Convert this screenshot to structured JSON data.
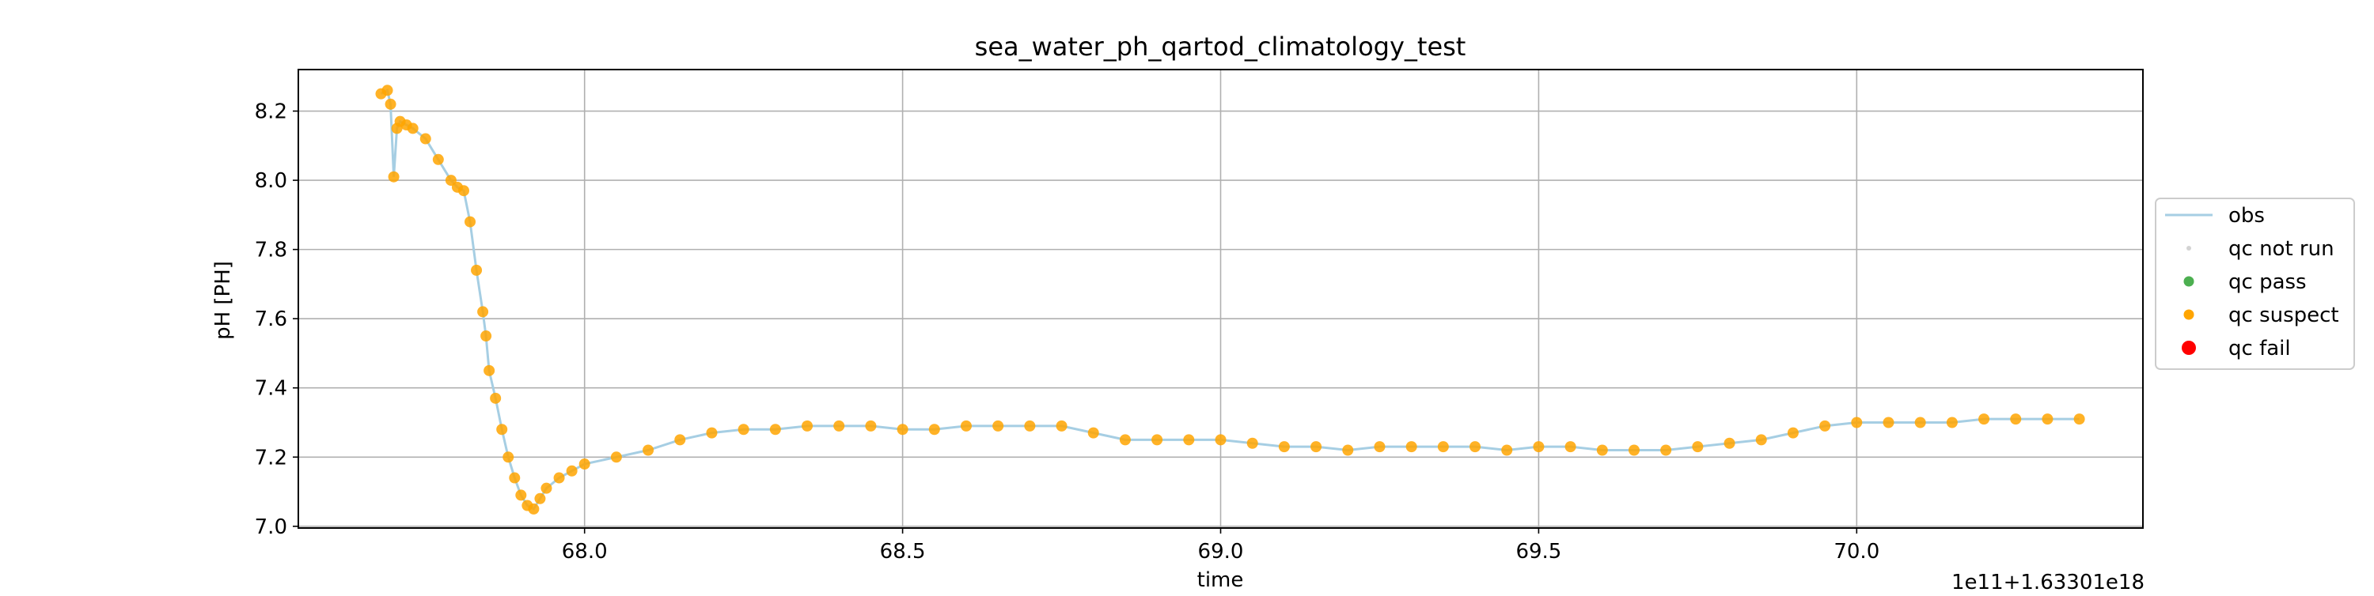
{
  "chart_data": {
    "type": "scatter",
    "title": "sea_water_ph_qartod_climatology_test",
    "xlabel": "time",
    "ylabel": "pH [PH]",
    "x_offset_label": "1e11+1.63301e18",
    "xlim": [
      67.55,
      70.45
    ],
    "ylim": [
      6.995,
      8.32
    ],
    "xticks": [
      68.0,
      68.5,
      69.0,
      69.5,
      70.0
    ],
    "xtick_labels": [
      "68.0",
      "68.5",
      "69.0",
      "69.5",
      "70.0"
    ],
    "yticks": [
      7.0,
      7.2,
      7.4,
      7.6,
      7.8,
      8.0,
      8.2
    ],
    "ytick_labels": [
      "7.0",
      "7.2",
      "7.4",
      "7.6",
      "7.8",
      "8.0",
      "8.2"
    ],
    "grid": true,
    "legend_position": "right-outside",
    "legend": [
      {
        "label": "obs",
        "kind": "line",
        "color": "#a6cee3"
      },
      {
        "label": "qc not run",
        "kind": "dot-small",
        "color": "#d3d3d3"
      },
      {
        "label": "qc pass",
        "kind": "dot",
        "color": "#4caf50"
      },
      {
        "label": "qc suspect",
        "kind": "dot",
        "color": "#ffa500"
      },
      {
        "label": "qc fail",
        "kind": "dot-large",
        "color": "#ff0000"
      }
    ],
    "series": [
      {
        "name": "obs",
        "role": "line",
        "color": "#a6cee3",
        "x": [
          67.68,
          67.69,
          67.695,
          67.7,
          67.705,
          67.71,
          67.72,
          67.73,
          67.75,
          67.77,
          67.79,
          67.8,
          67.81,
          67.82,
          67.83,
          67.84,
          67.845,
          67.85,
          67.86,
          67.87,
          67.88,
          67.89,
          67.9,
          67.91,
          67.92,
          67.93,
          67.94,
          67.96,
          67.98,
          68.0,
          68.05,
          68.1,
          68.15,
          68.2,
          68.25,
          68.3,
          68.35,
          68.4,
          68.45,
          68.5,
          68.55,
          68.6,
          68.65,
          68.7,
          68.75,
          68.8,
          68.85,
          68.9,
          68.95,
          69.0,
          69.05,
          69.1,
          69.15,
          69.2,
          69.25,
          69.3,
          69.35,
          69.4,
          69.45,
          69.5,
          69.55,
          69.6,
          69.65,
          69.7,
          69.75,
          69.8,
          69.85,
          69.9,
          69.95,
          70.0,
          70.05,
          70.1,
          70.15,
          70.2,
          70.25,
          70.3,
          70.35
        ],
        "y": [
          8.25,
          8.26,
          8.22,
          8.01,
          8.15,
          8.17,
          8.16,
          8.15,
          8.12,
          8.06,
          8.0,
          7.98,
          7.97,
          7.88,
          7.74,
          7.62,
          7.55,
          7.45,
          7.37,
          7.28,
          7.2,
          7.14,
          7.09,
          7.06,
          7.05,
          7.08,
          7.11,
          7.14,
          7.16,
          7.18,
          7.2,
          7.22,
          7.25,
          7.27,
          7.28,
          7.28,
          7.29,
          7.29,
          7.29,
          7.28,
          7.28,
          7.29,
          7.29,
          7.29,
          7.29,
          7.27,
          7.25,
          7.25,
          7.25,
          7.25,
          7.24,
          7.23,
          7.23,
          7.22,
          7.23,
          7.23,
          7.23,
          7.23,
          7.22,
          7.23,
          7.23,
          7.22,
          7.22,
          7.22,
          7.23,
          7.24,
          7.25,
          7.27,
          7.29,
          7.3,
          7.3,
          7.3,
          7.3,
          7.31,
          7.31,
          7.31,
          7.31
        ]
      },
      {
        "name": "qc suspect",
        "role": "points",
        "color": "#ffa500",
        "x": [
          67.68,
          67.69,
          67.695,
          67.7,
          67.705,
          67.71,
          67.72,
          67.73,
          67.75,
          67.77,
          67.79,
          67.8,
          67.81,
          67.82,
          67.83,
          67.84,
          67.845,
          67.85,
          67.86,
          67.87,
          67.88,
          67.89,
          67.9,
          67.91,
          67.92,
          67.93,
          67.94,
          67.96,
          67.98,
          68.0,
          68.05,
          68.1,
          68.15,
          68.2,
          68.25,
          68.3,
          68.35,
          68.4,
          68.45,
          68.5,
          68.55,
          68.6,
          68.65,
          68.7,
          68.75,
          68.8,
          68.85,
          68.9,
          68.95,
          69.0,
          69.05,
          69.1,
          69.15,
          69.2,
          69.25,
          69.3,
          69.35,
          69.4,
          69.45,
          69.5,
          69.55,
          69.6,
          69.65,
          69.7,
          69.75,
          69.8,
          69.85,
          69.9,
          69.95,
          70.0,
          70.05,
          70.1,
          70.15,
          70.2,
          70.25,
          70.3,
          70.35
        ],
        "y": [
          8.25,
          8.26,
          8.22,
          8.01,
          8.15,
          8.17,
          8.16,
          8.15,
          8.12,
          8.06,
          8.0,
          7.98,
          7.97,
          7.88,
          7.74,
          7.62,
          7.55,
          7.45,
          7.37,
          7.28,
          7.2,
          7.14,
          7.09,
          7.06,
          7.05,
          7.08,
          7.11,
          7.14,
          7.16,
          7.18,
          7.2,
          7.22,
          7.25,
          7.27,
          7.28,
          7.28,
          7.29,
          7.29,
          7.29,
          7.28,
          7.28,
          7.29,
          7.29,
          7.29,
          7.29,
          7.27,
          7.25,
          7.25,
          7.25,
          7.25,
          7.24,
          7.23,
          7.23,
          7.22,
          7.23,
          7.23,
          7.23,
          7.23,
          7.22,
          7.23,
          7.23,
          7.22,
          7.22,
          7.22,
          7.23,
          7.24,
          7.25,
          7.27,
          7.29,
          7.3,
          7.3,
          7.3,
          7.3,
          7.31,
          7.31,
          7.31,
          7.31
        ]
      }
    ]
  }
}
